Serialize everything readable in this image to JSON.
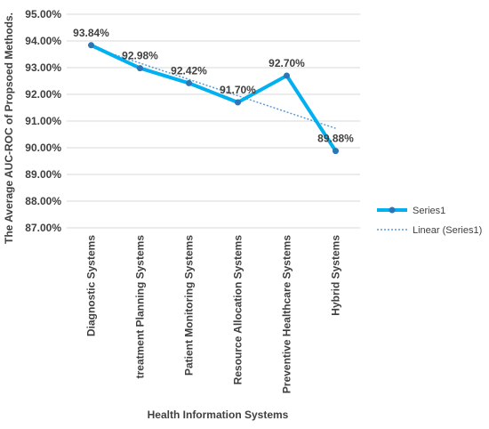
{
  "chart_data": {
    "type": "line",
    "xlabel": "Health Information Systems",
    "ylabel": "The Average AUC-ROC of Propsoed Methods.",
    "categories": [
      "Diagnostic Systems",
      "treatment Planning Systems",
      "Patient Monitoring Systems",
      "Resource Allocation Systems",
      "Preventive Healthcare Systems",
      "Hybrid Systems"
    ],
    "series": [
      {
        "name": "Series1",
        "values": [
          93.84,
          92.98,
          92.42,
          91.7,
          92.7,
          89.88
        ],
        "labels": [
          "93.84%",
          "92.98%",
          "92.42%",
          "91.70%",
          "92.70%",
          "89.88%"
        ],
        "color": "#00B0F0"
      }
    ],
    "trendline": {
      "name": "Linear (Series1)",
      "type": "linear",
      "color": "#5B9BD5"
    },
    "ylim": [
      87,
      95
    ],
    "yticks": [
      "87.00%",
      "88.00%",
      "89.00%",
      "90.00%",
      "91.00%",
      "92.00%",
      "93.00%",
      "94.00%",
      "95.00%"
    ],
    "grid": true,
    "legend": "right"
  }
}
